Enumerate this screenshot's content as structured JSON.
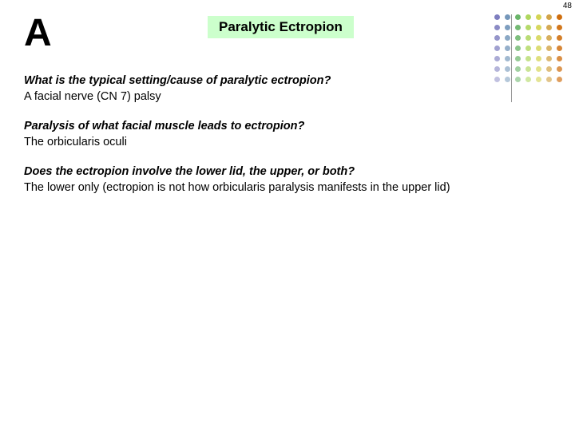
{
  "page_number": "48",
  "big_letter": "A",
  "title": "Paralytic Ectropion",
  "title_bg": "#ccffcc",
  "qa": [
    {
      "q": "What is the typical setting/cause of paralytic ectropion?",
      "a": "A facial nerve (CN 7) palsy"
    },
    {
      "q": "Paralysis of what facial muscle leads to ectropion?",
      "a": "The orbicularis oculi"
    },
    {
      "q": "Does the ectropion involve the lower lid, the upper, or both?",
      "a": "The lower only (ectropion is not how orbicularis paralysis manifests in the upper lid)"
    }
  ],
  "dot_grid": {
    "rows": 7,
    "cols": 7,
    "colors": [
      "#333399",
      "#336699",
      "#339933",
      "#99cc33",
      "#cccc33",
      "#cc9933",
      "#cc6600"
    ]
  }
}
